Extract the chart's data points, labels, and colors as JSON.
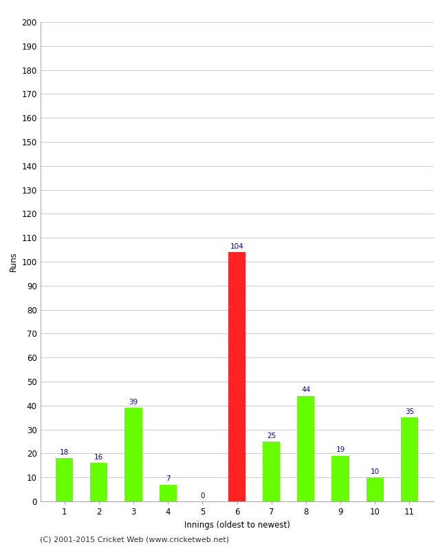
{
  "categories": [
    "1",
    "2",
    "3",
    "4",
    "5",
    "6",
    "7",
    "8",
    "9",
    "10",
    "11"
  ],
  "values": [
    18,
    16,
    39,
    7,
    0,
    104,
    25,
    44,
    19,
    10,
    35
  ],
  "bar_colors": [
    "#66ff00",
    "#66ff00",
    "#66ff00",
    "#66ff00",
    "#66ff00",
    "#ff2222",
    "#66ff00",
    "#66ff00",
    "#66ff00",
    "#66ff00",
    "#66ff00"
  ],
  "xlabel": "Innings (oldest to newest)",
  "ylabel": "Runs",
  "ylim": [
    0,
    200
  ],
  "yticks": [
    0,
    10,
    20,
    30,
    40,
    50,
    60,
    70,
    80,
    90,
    100,
    110,
    120,
    130,
    140,
    150,
    160,
    170,
    180,
    190,
    200
  ],
  "footer": "(C) 2001-2015 Cricket Web (www.cricketweb.net)",
  "label_color": "#0000cc",
  "label_fontsize": 7.5,
  "background_color": "#ffffff",
  "grid_color": "#cccccc",
  "bar_width": 0.5
}
